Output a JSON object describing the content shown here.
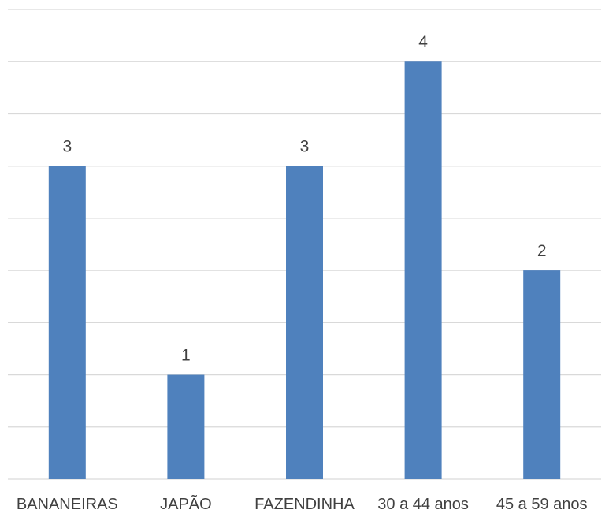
{
  "chart_data": {
    "type": "bar",
    "title": "",
    "xlabel": "",
    "ylabel": "",
    "categories": [
      "BANANEIRAS",
      "JAPÃO",
      "FAZENDINHA",
      "30 a 44 anos",
      "45 a 59 anos"
    ],
    "values": [
      3,
      1,
      3,
      4,
      2
    ],
    "ylim": [
      0,
      4.5
    ],
    "grid_step": 0.5,
    "grid": true,
    "legend": "none",
    "show_y_tick_labels": false,
    "data_labels": true,
    "bar_color": "#4f81bd",
    "grid_color": "#d9d9d9",
    "text_color": "#404040"
  }
}
